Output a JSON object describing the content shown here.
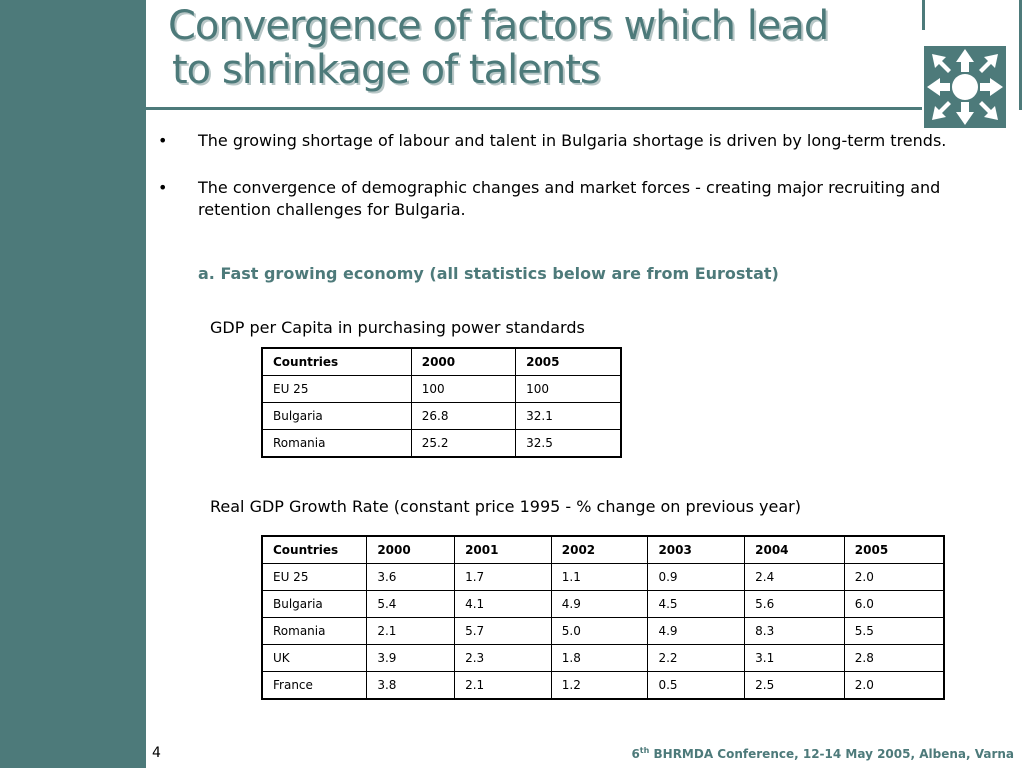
{
  "title": {
    "line1": "Convergence of factors which lead",
    "line2": "to shrinkage of talents"
  },
  "bullets": [
    {
      "text": "The growing shortage of labour and talent in Bulgaria shortage is driven by long-term trends."
    },
    {
      "text": "The convergence of demographic changes and market forces - creating major recruiting and retention challenges for Bulgaria."
    }
  ],
  "bullet_symbol": "•",
  "subheading": "a. Fast growing economy (all statistics below are from Eurostat)",
  "table1": {
    "caption": "GDP per Capita in purchasing power standards",
    "headers": [
      "Countries",
      "2000",
      "2005"
    ],
    "rows": [
      [
        "EU 25",
        "100",
        "100"
      ],
      [
        "Bulgaria",
        "26.8",
        "32.1"
      ],
      [
        "Romania",
        "25.2",
        "32.5"
      ]
    ]
  },
  "table2": {
    "caption": "Real GDP Growth Rate (constant price 1995 - % change on previous year)",
    "headers": [
      "Countries",
      "2000",
      "2001",
      "2002",
      "2003",
      "2004",
      "2005"
    ],
    "rows": [
      [
        "EU 25",
        "3.6",
        "1.7",
        "1.1",
        "0.9",
        "2.4",
        "2.0"
      ],
      [
        "Bulgaria",
        "5.4",
        "4.1",
        "4.9",
        "4.5",
        "5.6",
        "6.0"
      ],
      [
        "Romania",
        "2.1",
        "5.7",
        "5.0",
        "4.9",
        "8.3",
        "5.5"
      ],
      [
        "UK",
        "3.9",
        "2.3",
        "1.8",
        "2.2",
        "3.1",
        "2.8"
      ],
      [
        "France",
        "3.8",
        "2.1",
        "1.2",
        "0.5",
        "2.5",
        "2.0"
      ]
    ]
  },
  "footer": {
    "page_number": "4",
    "edition_number": "6",
    "edition_suffix": "th",
    "conference_text": " BHRMDA Conference, 12-14 May 2005, Albena, Varna"
  },
  "colors": {
    "accent": "#4d7a7a",
    "title_shadow": "#b9c7c7"
  },
  "icons": {
    "logo": "arrows-compass-logo-icon"
  }
}
